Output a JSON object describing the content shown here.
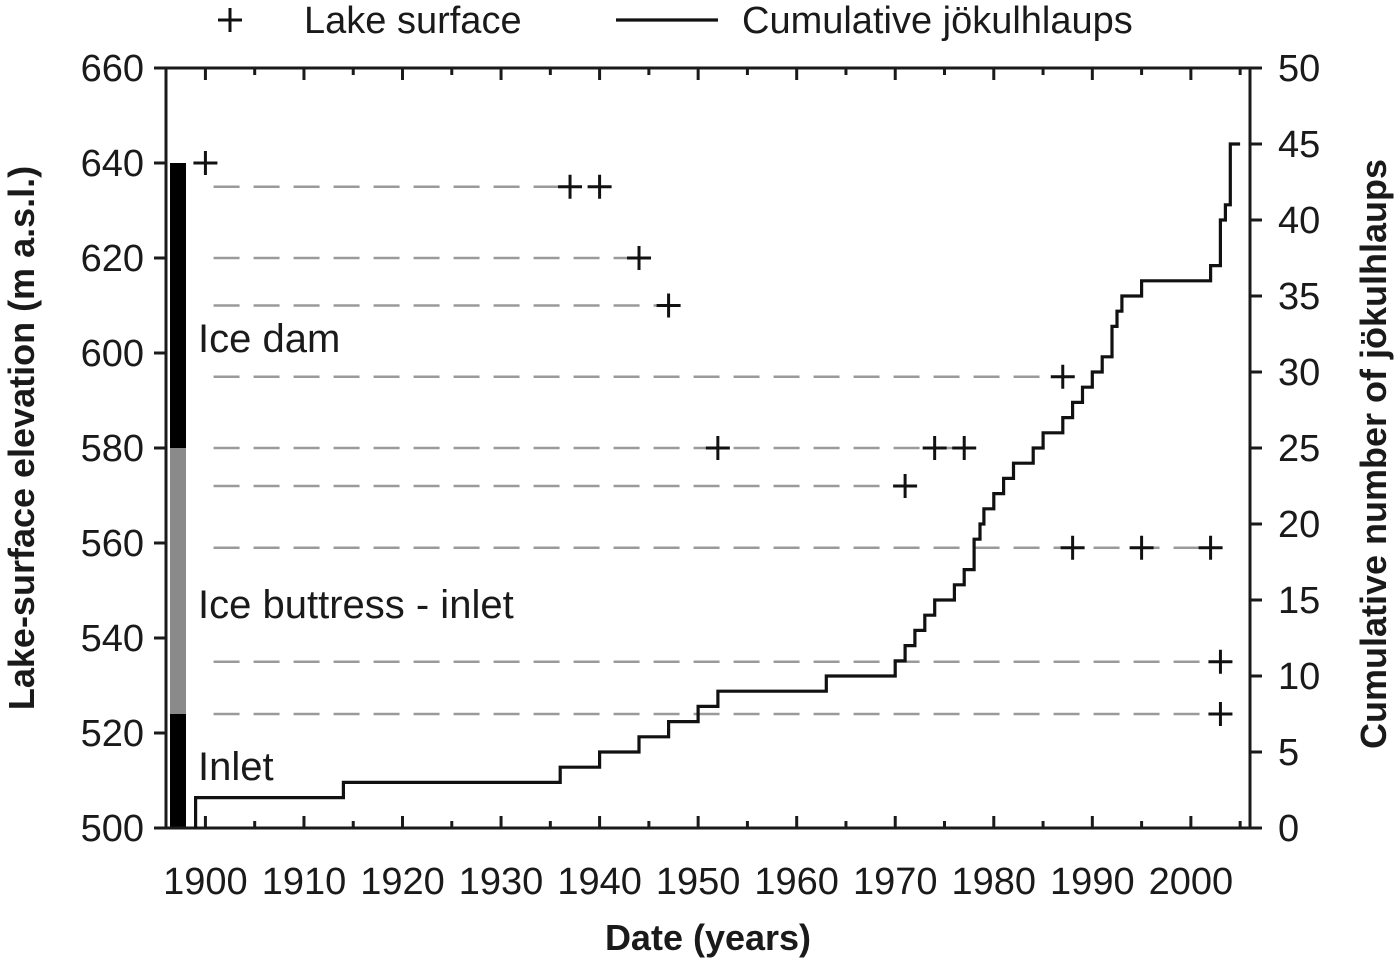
{
  "chart_data": {
    "type": "line",
    "xlabel": "Date (years)",
    "ylabel": "Lake-surface elevation (m a.s.l.)",
    "y2label": "Cumulative number of jökulhlaups",
    "xlim": [
      1896,
      2006
    ],
    "ylim": [
      500,
      660
    ],
    "y2lim": [
      0,
      50
    ],
    "x_ticks": [
      1900,
      1910,
      1920,
      1930,
      1940,
      1950,
      1960,
      1970,
      1980,
      1990,
      2000
    ],
    "y_ticks": [
      500,
      520,
      540,
      560,
      580,
      600,
      620,
      640,
      660
    ],
    "y2_ticks": [
      0,
      5,
      10,
      15,
      20,
      25,
      30,
      35,
      40,
      45,
      50
    ],
    "legend": {
      "placement": "top",
      "entries": [
        {
          "label": "Lake surface",
          "marker": "plus"
        },
        {
          "label": "Cumulative jökulhlaups",
          "marker": "line"
        }
      ]
    },
    "zones": [
      {
        "label": "Ice dam",
        "y_from": 580,
        "y_to": 640,
        "color": "#000000"
      },
      {
        "label": "Ice buttress - inlet",
        "y_from": 524,
        "y_to": 580,
        "color": "#8a8a8a"
      },
      {
        "label": "Inlet",
        "y_from": 500,
        "y_to": 524,
        "color": "#000000"
      }
    ],
    "series": [
      {
        "name": "Lake surface",
        "type": "scatter",
        "points": [
          {
            "x": 1900,
            "y": 640
          },
          {
            "x": 1937,
            "y": 635
          },
          {
            "x": 1940,
            "y": 635
          },
          {
            "x": 1944,
            "y": 620
          },
          {
            "x": 1947,
            "y": 610
          },
          {
            "x": 1952,
            "y": 580
          },
          {
            "x": 1974,
            "y": 580
          },
          {
            "x": 1977,
            "y": 580
          },
          {
            "x": 1971,
            "y": 572
          },
          {
            "x": 1987,
            "y": 595
          },
          {
            "x": 1988,
            "y": 559
          },
          {
            "x": 1995,
            "y": 559
          },
          {
            "x": 2002,
            "y": 559
          },
          {
            "x": 2003,
            "y": 535
          },
          {
            "x": 2003,
            "y": 524
          }
        ]
      },
      {
        "name": "Cumulative jökulhlaups",
        "type": "step",
        "axis": "right",
        "points": [
          [
            1899,
            0
          ],
          [
            1899,
            2
          ],
          [
            1914,
            2
          ],
          [
            1914,
            3
          ],
          [
            1936,
            3
          ],
          [
            1936,
            4
          ],
          [
            1940,
            4
          ],
          [
            1940,
            5
          ],
          [
            1944,
            5
          ],
          [
            1944,
            6
          ],
          [
            1947,
            6
          ],
          [
            1947,
            7
          ],
          [
            1950,
            7
          ],
          [
            1950,
            8
          ],
          [
            1952,
            8
          ],
          [
            1952,
            9
          ],
          [
            1963,
            9
          ],
          [
            1963,
            10
          ],
          [
            1970,
            10
          ],
          [
            1970,
            11
          ],
          [
            1971,
            11
          ],
          [
            1971,
            12
          ],
          [
            1972,
            12
          ],
          [
            1972,
            13
          ],
          [
            1973,
            13
          ],
          [
            1973,
            14
          ],
          [
            1974,
            14
          ],
          [
            1974,
            15
          ],
          [
            1976,
            15
          ],
          [
            1976,
            16
          ],
          [
            1977,
            16
          ],
          [
            1977,
            17
          ],
          [
            1978,
            17
          ],
          [
            1978,
            19
          ],
          [
            1978.6,
            19
          ],
          [
            1978.6,
            20
          ],
          [
            1979,
            20
          ],
          [
            1979,
            21
          ],
          [
            1980,
            21
          ],
          [
            1980,
            22
          ],
          [
            1981,
            22
          ],
          [
            1981,
            23
          ],
          [
            1982,
            23
          ],
          [
            1982,
            24
          ],
          [
            1984,
            24
          ],
          [
            1984,
            25
          ],
          [
            1985,
            25
          ],
          [
            1985,
            26
          ],
          [
            1987,
            26
          ],
          [
            1987,
            27
          ],
          [
            1988,
            27
          ],
          [
            1988,
            28
          ],
          [
            1989,
            28
          ],
          [
            1989,
            29
          ],
          [
            1990,
            29
          ],
          [
            1990,
            30
          ],
          [
            1991,
            30
          ],
          [
            1991,
            31
          ],
          [
            1992,
            31
          ],
          [
            1992,
            33
          ],
          [
            1992.5,
            33
          ],
          [
            1992.5,
            34
          ],
          [
            1993,
            34
          ],
          [
            1993,
            35
          ],
          [
            1995,
            35
          ],
          [
            1995,
            36
          ],
          [
            2002,
            36
          ],
          [
            2002,
            37
          ],
          [
            2003,
            37
          ],
          [
            2003,
            40
          ],
          [
            2003.5,
            40
          ],
          [
            2003.5,
            41
          ],
          [
            2004,
            41
          ],
          [
            2004,
            45
          ],
          [
            2005,
            45
          ]
        ]
      }
    ],
    "reference_lines": [
      {
        "y": 635,
        "x_from": 1899,
        "x_to": 1937
      },
      {
        "y": 620,
        "x_from": 1899,
        "x_to": 1944
      },
      {
        "y": 610,
        "x_from": 1899,
        "x_to": 1947
      },
      {
        "y": 595,
        "x_from": 1899,
        "x_to": 1987
      },
      {
        "y": 580,
        "x_from": 1899,
        "x_to": 1977
      },
      {
        "y": 572,
        "x_from": 1899,
        "x_to": 1971
      },
      {
        "y": 559,
        "x_from": 1899,
        "x_to": 2002
      },
      {
        "y": 535,
        "x_from": 1899,
        "x_to": 2003
      },
      {
        "y": 524,
        "x_from": 1899,
        "x_to": 2003
      }
    ]
  }
}
